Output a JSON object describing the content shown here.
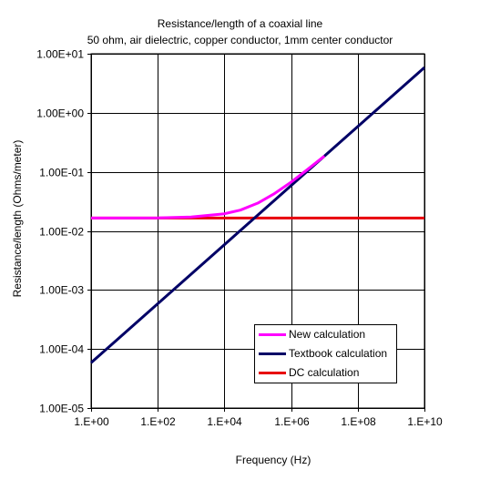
{
  "chart_data": {
    "type": "line",
    "title": "Resistance/length of a coaxial line",
    "subtitle": "50 ohm, air dielectric, copper conductor, 1mm center conductor",
    "xlabel": "Frequency (Hz)",
    "ylabel": "Resistance/length (Ohms/meter)",
    "x_scale": "log",
    "y_scale": "log",
    "xlim": [
      1,
      10000000000
    ],
    "ylim": [
      1e-05,
      10
    ],
    "x_ticks": [
      1,
      100,
      10000,
      1000000,
      100000000,
      10000000000
    ],
    "x_tick_labels": [
      "1.E+00",
      "1.E+02",
      "1.E+04",
      "1.E+06",
      "1.E+08",
      "1.E+10"
    ],
    "y_ticks": [
      1e-05,
      0.0001,
      0.001,
      0.01,
      0.1,
      1,
      10
    ],
    "y_tick_labels": [
      "1.00E-05",
      "1.00E-04",
      "1.00E-03",
      "1.00E-02",
      "1.00E-01",
      "1.00E+00",
      "1.00E+01"
    ],
    "grid": true,
    "legend_position": "bottom-right",
    "series": [
      {
        "name": "New calculation",
        "color": "#ff00ff",
        "x": [
          1,
          10,
          100,
          1000,
          10000,
          30000,
          100000,
          300000,
          1000000,
          3000000,
          10000000
        ],
        "y": [
          0.0165,
          0.0165,
          0.0166,
          0.0172,
          0.0195,
          0.0225,
          0.0295,
          0.042,
          0.067,
          0.108,
          0.185
        ]
      },
      {
        "name": "Textbook calculation",
        "color": "#000066",
        "x": [
          1,
          10000000000
        ],
        "y": [
          5.85e-05,
          5.85
        ]
      },
      {
        "name": "DC calculation",
        "color": "#e8000b",
        "x": [
          1,
          10000000000
        ],
        "y": [
          0.0165,
          0.0165
        ]
      }
    ]
  }
}
